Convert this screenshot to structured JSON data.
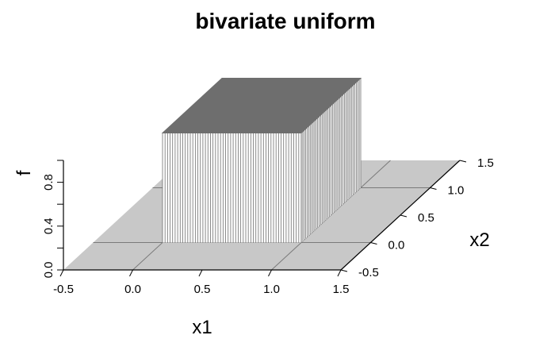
{
  "chart_data": {
    "type": "surface3d",
    "title": "bivariate uniform",
    "xlabel": "x1",
    "ylabel": "x2",
    "zlabel": "f",
    "x_ticks": [
      "-0.5",
      "0.0",
      "0.5",
      "1.0",
      "1.5"
    ],
    "y_ticks": [
      "-0.5",
      "0.0",
      "0.5",
      "1.0",
      "1.5"
    ],
    "z_ticks": [
      "0.0",
      "0.4",
      "0.8"
    ],
    "xlim": [
      -0.5,
      1.5
    ],
    "ylim": [
      -0.5,
      1.5
    ],
    "zlim": [
      0,
      1
    ],
    "support": {
      "x1": [
        0,
        1
      ],
      "x2": [
        0,
        1
      ]
    },
    "density": 1,
    "colors": {
      "floor": "#c8c8c8",
      "top": "#6e6e6e",
      "wall": "#ffffff",
      "wall_lines": "#707070",
      "floor_lines": "#7a7a7a"
    }
  }
}
